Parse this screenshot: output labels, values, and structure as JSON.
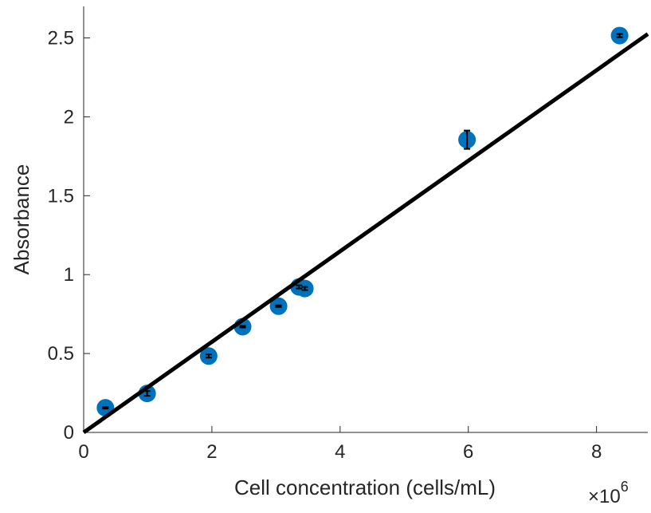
{
  "chart_data": {
    "type": "scatter",
    "x_label": "Cell concentration (cells/mL)",
    "y_label": "Absorbance",
    "x_multiplier": "×10",
    "x_exponent": 6,
    "series": [
      {
        "color": "#0072bd",
        "x": [
          0.34,
          0.99,
          1.95,
          2.48,
          3.04,
          3.36,
          3.45,
          5.98,
          8.36
        ],
        "values": [
          0.156,
          0.247,
          0.484,
          0.67,
          0.8,
          0.922,
          0.912,
          1.855,
          2.515
        ],
        "errors": [
          0.005,
          0.015,
          0.01,
          0.005,
          0.005,
          0.01,
          0.01,
          0.058,
          0.01
        ]
      }
    ],
    "fit": {
      "color": "#000000",
      "x": [
        0,
        8.8
      ],
      "values": [
        0,
        2.525
      ]
    },
    "xlim": [
      0,
      8.8
    ],
    "xticks": [
      0,
      2,
      4,
      6,
      8
    ],
    "ylim": [
      0,
      2.7
    ],
    "yticks": [
      0,
      0.5,
      1,
      1.5,
      2,
      2.5
    ],
    "grid": false
  }
}
